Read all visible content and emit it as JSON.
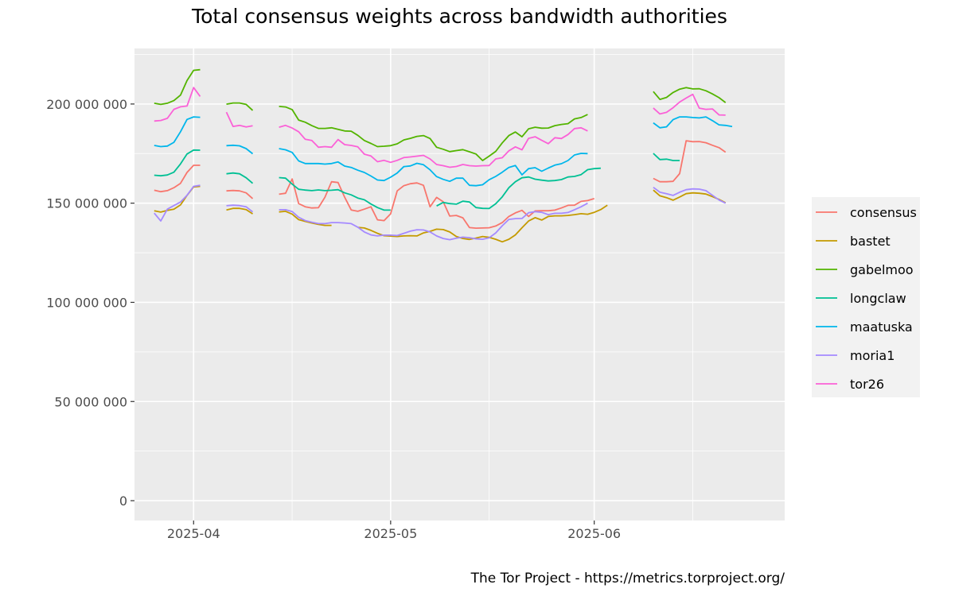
{
  "chart_data": {
    "type": "line",
    "title": "Total consensus weights across bandwidth authorities",
    "caption": "The Tor Project - https://metrics.torproject.org/",
    "xlabel": "",
    "ylabel": "",
    "ylim": [
      -10000000,
      228000000
    ],
    "xlim": [
      "2025-03-23",
      "2025-06-30"
    ],
    "grid": true,
    "legend_position": "right",
    "y_ticks": [
      0,
      50000000,
      100000000,
      150000000,
      200000000
    ],
    "y_tick_labels": [
      "0",
      "50 000 000",
      "100 000 000",
      "150 000 000",
      "200 000 000"
    ],
    "x_ticks": [
      "2025-04-01",
      "2025-05-01",
      "2025-06-01"
    ],
    "x_tick_labels": [
      "2025-04",
      "2025-05",
      "2025-06"
    ],
    "x_minor_ticks": [
      "2025-03-16",
      "2025-04-16",
      "2025-05-16",
      "2025-06-16"
    ],
    "series": [
      {
        "name": "consensus",
        "color": "#F8766D",
        "segments": [
          {
            "start": "2025-03-26",
            "values": [
              156500000,
              155800000,
              156300000,
              157800000,
              160000000,
              165500000,
              169100000,
              169100000
            ]
          },
          {
            "start": "2025-04-06",
            "values": [
              156200000,
              156400000,
              156200000,
              155200000,
              152300000
            ]
          },
          {
            "start": "2025-04-14",
            "values": [
              154500000,
              155000000,
              162200000,
              149800000,
              148200000,
              147600000,
              147700000,
              153000000,
              160800000,
              160400000,
              153000000,
              146600000,
              145900000,
              147000000,
              148200000,
              141600000,
              141200000,
              144600000,
              156200000,
              158800000,
              159800000,
              160200000,
              159000000,
              148200000,
              152900000,
              150700000,
              143500000,
              143800000,
              142600000,
              137700000,
              137400000,
              137500000,
              137600000,
              138500000,
              140200000,
              143300000,
              145100000,
              146400000,
              143300000,
              146100000,
              146200000,
              146200000,
              146500000,
              147600000,
              148900000,
              149000000,
              150900000,
              151300000,
              152300000
            ]
          },
          {
            "start": "2025-06-10",
            "values": [
              162500000,
              160800000,
              160800000,
              161000000,
              164900000,
              181500000,
              181000000,
              181100000,
              180500000,
              179200000,
              178000000,
              175700000
            ]
          }
        ]
      },
      {
        "name": "bastet",
        "color": "#C49A00",
        "segments": [
          {
            "start": "2025-03-26",
            "values": [
              146200000,
              145500000,
              146400000,
              147000000,
              149100000,
              153900000,
              158200000,
              158500000
            ]
          },
          {
            "start": "2025-04-06",
            "values": [
              146600000,
              147400000,
              147400000,
              146800000,
              144600000
            ]
          },
          {
            "start": "2025-04-14",
            "values": [
              145600000,
              145900000,
              144500000,
              141700000,
              140800000,
              140000000,
              139300000,
              138800000,
              138800000
            ]
          },
          {
            "start": "2025-04-26",
            "values": [
              137800000,
              137500000,
              136300000,
              134800000,
              133600000,
              133400000,
              133200000,
              133500000,
              133600000,
              133500000,
              135000000,
              135800000,
              136900000,
              136700000,
              135500000,
              133200000,
              132200000,
              131700000,
              132400000,
              133200000,
              132800000,
              131800000,
              130500000,
              131800000,
              134000000,
              137600000,
              141000000,
              142700000,
              141500000,
              143300000,
              143600000,
              143600000,
              143800000,
              144200000,
              144700000,
              144400000,
              145400000,
              146800000,
              149000000
            ]
          },
          {
            "start": "2025-06-10",
            "values": [
              156600000,
              153700000,
              152800000,
              151500000,
              153100000,
              154800000,
              155200000,
              155000000,
              154600000,
              153300000,
              151900000,
              150200000
            ]
          }
        ]
      },
      {
        "name": "gabelmoo",
        "color": "#53B400",
        "segments": [
          {
            "start": "2025-03-26",
            "values": [
              200400000,
              199800000,
              200400000,
              201700000,
              204500000,
              211800000,
              217000000,
              217300000
            ]
          },
          {
            "start": "2025-04-06",
            "values": [
              199900000,
              200500000,
              200500000,
              199800000,
              196800000
            ]
          },
          {
            "start": "2025-04-14",
            "values": [
              198800000,
              198500000,
              197200000,
              191900000,
              190800000,
              189100000,
              187700000,
              187700000,
              188000000,
              187200000,
              186400000,
              186300000,
              184200000,
              181600000,
              180100000,
              178500000,
              178700000,
              179000000,
              179900000,
              181900000,
              182700000,
              183700000,
              184100000,
              182600000,
              178200000,
              177200000,
              176000000,
              176500000,
              177000000,
              175900000,
              174800000,
              171500000,
              173700000,
              176100000,
              180400000,
              184100000,
              185900000,
              183500000,
              187500000,
              188300000,
              187800000,
              187900000,
              189100000,
              189700000,
              190100000,
              192500000,
              193200000,
              194700000
            ]
          },
          {
            "start": "2025-06-10",
            "values": [
              206300000,
              202300000,
              203300000,
              205800000,
              207500000,
              208300000,
              207600000,
              207700000,
              206700000,
              205100000,
              203200000,
              200700000
            ]
          }
        ]
      },
      {
        "name": "longclaw",
        "color": "#00C094",
        "segments": [
          {
            "start": "2025-03-26",
            "values": [
              164100000,
              163800000,
              164200000,
              165600000,
              169800000,
              174800000,
              176800000,
              176700000
            ]
          },
          {
            "start": "2025-04-06",
            "values": [
              164800000,
              165200000,
              164800000,
              162800000,
              160000000
            ]
          },
          {
            "start": "2025-04-14",
            "values": [
              162900000,
              162600000,
              159600000,
              157000000,
              156600000,
              156300000,
              156700000,
              156300000,
              156500000,
              156800000,
              155200000,
              154200000,
              152600000,
              151700000,
              149600000,
              147800000,
              146500000,
              146500000
            ]
          },
          {
            "start": "2025-05-08",
            "values": [
              148600000,
              150400000,
              149800000,
              149500000,
              151000000,
              150600000,
              147800000,
              147400000,
              147300000,
              149700000,
              153200000,
              157800000,
              160800000,
              162800000,
              163200000,
              162100000,
              161600000,
              161200000,
              161400000,
              161900000,
              163200000,
              163500000,
              164400000,
              166900000,
              167400000,
              167600000
            ]
          },
          {
            "start": "2025-06-10",
            "values": [
              175100000,
              172000000,
              172200000,
              171500000,
              171500000
            ]
          }
        ]
      },
      {
        "name": "maatuska",
        "color": "#00B6EB",
        "segments": [
          {
            "start": "2025-03-26",
            "values": [
              179100000,
              178500000,
              178800000,
              180700000,
              186000000,
              192200000,
              193500000,
              193300000
            ]
          },
          {
            "start": "2025-04-06",
            "values": [
              179000000,
              179200000,
              178900000,
              177500000,
              174900000
            ]
          },
          {
            "start": "2025-04-14",
            "values": [
              177500000,
              176900000,
              175600000,
              171300000,
              170000000,
              170000000,
              170000000,
              169700000,
              170000000,
              170800000,
              168700000,
              168000000,
              166600000,
              165500000,
              163700000,
              161700000,
              161400000,
              163100000,
              165200000,
              168400000,
              168800000,
              170100000,
              169400000,
              166800000,
              163400000,
              162000000,
              161000000,
              162600000,
              162600000,
              159000000,
              158800000,
              159300000,
              161800000,
              163500000,
              165600000,
              168000000,
              169000000,
              164300000,
              167400000,
              167900000,
              166100000,
              167700000,
              169200000,
              169900000,
              171500000,
              174300000,
              175100000,
              175000000
            ]
          },
          {
            "start": "2025-06-10",
            "values": [
              190500000,
              188000000,
              188500000,
              192100000,
              193500000,
              193500000,
              193200000,
              193000000,
              193500000,
              191600000,
              189500000,
              189200000,
              188600000
            ]
          }
        ]
      },
      {
        "name": "moria1",
        "color": "#A58AFF",
        "segments": [
          {
            "start": "2025-03-26",
            "values": [
              145000000,
              141000000,
              147000000,
              148800000,
              150600000,
              154000000,
              158500000,
              159000000
            ]
          },
          {
            "start": "2025-04-06",
            "values": [
              148700000,
              149000000,
              148800000,
              148200000,
              145600000
            ]
          },
          {
            "start": "2025-04-14",
            "values": [
              146700000,
              146700000,
              145800000,
              142900000,
              141200000,
              140400000,
              139700000,
              139700000,
              140200000,
              140200000,
              140000000,
              139700000,
              137900000,
              135500000,
              134000000,
              133500000,
              133900000,
              133900000,
              133700000,
              134800000,
              135900000,
              136600000,
              136500000,
              135500000,
              133500000,
              132200000,
              131600000,
              132300000,
              132900000,
              132600000,
              132000000,
              131800000,
              132500000,
              135000000,
              138600000,
              141800000,
              142200000,
              142300000,
              145200000,
              145700000,
              145400000,
              144200000,
              144900000,
              144900000,
              145300000,
              146700000,
              148200000,
              150000000
            ]
          },
          {
            "start": "2025-06-10",
            "values": [
              158000000,
              155500000,
              154800000,
              153900000,
              155500000,
              156800000,
              157200000,
              157100000,
              156300000,
              154000000,
              151600000,
              150000000
            ]
          }
        ]
      },
      {
        "name": "tor26",
        "color": "#FB61D7",
        "segments": [
          {
            "start": "2025-03-26",
            "values": [
              191400000,
              191700000,
              192800000,
              197300000,
              198600000,
              199000000,
              208300000,
              203800000
            ]
          },
          {
            "start": "2025-04-06",
            "values": [
              195900000,
              188700000,
              189200000,
              188400000,
              189000000
            ]
          },
          {
            "start": "2025-04-14",
            "values": [
              188300000,
              189200000,
              187900000,
              186000000,
              182200000,
              181600000,
              178200000,
              178500000,
              178200000,
              182100000,
              179500000,
              179100000,
              178400000,
              174700000,
              173800000,
              170900000,
              171600000,
              170600000,
              171600000,
              173000000,
              173300000,
              173700000,
              174100000,
              172300000,
              169500000,
              168900000,
              168100000,
              168500000,
              169500000,
              168900000,
              168700000,
              168900000,
              169000000,
              172300000,
              172900000,
              176400000,
              178400000,
              176900000,
              182700000,
              183500000,
              181700000,
              180000000,
              183000000,
              182600000,
              184600000,
              187600000,
              188000000,
              186400000
            ]
          },
          {
            "start": "2025-06-10",
            "values": [
              198000000,
              195000000,
              195800000,
              198100000,
              201000000,
              203000000,
              204900000,
              197900000,
              197300000,
              197500000,
              194500000,
              194400000
            ]
          }
        ]
      }
    ]
  }
}
